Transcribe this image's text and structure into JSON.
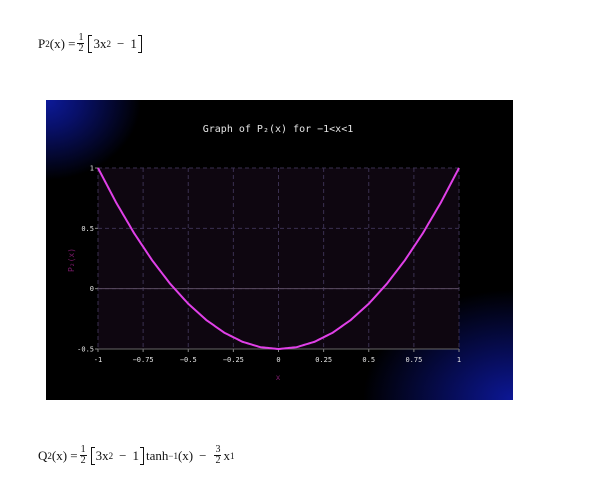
{
  "formula_p2": {
    "lhs": "P",
    "lhs_sub": "2",
    "arg": "(x) =",
    "frac_num": "1",
    "frac_den": "2",
    "term1": "3x",
    "term1_sup": "2",
    "minus": "−",
    "term2": "1"
  },
  "formula_q2": {
    "lhs": "Q",
    "lhs_sub": "2",
    "arg": "(x) =",
    "frac_num": "1",
    "frac_den": "2",
    "term1": "3x",
    "term1_sup": "2",
    "minus": "−",
    "term2": "1",
    "func": "tanh",
    "func_sup": "−1",
    "func_arg": "(x)",
    "minus2": "−",
    "frac2_num": "3",
    "frac2_den": "2",
    "tail": "x",
    "tail_sup": "1"
  },
  "colors": {
    "curve": "#e040e8",
    "text": "#e6e6e6",
    "ylabel": "#7a1a6a",
    "xlabel": "#7a1a6a",
    "grid": "#3a3050",
    "plot_bg": "#0e0610"
  },
  "chart_data": {
    "type": "line",
    "title": "Graph of P₂(x) for −1<x<1",
    "xlabel": "x",
    "ylabel": "P₂(x)",
    "xlim": [
      -1,
      1
    ],
    "ylim": [
      -0.5,
      1
    ],
    "x_ticks": [
      "-1",
      "−0.75",
      "−0.5",
      "−0.25",
      "0",
      "0.25",
      "0.5",
      "0.75",
      "1"
    ],
    "y_ticks": [
      "-0.5",
      "0",
      "0.5",
      "1"
    ],
    "grid": true,
    "series": [
      {
        "x": [
          -1,
          -0.9,
          -0.8,
          -0.7,
          -0.6,
          -0.5,
          -0.4,
          -0.3,
          -0.2,
          -0.1,
          0,
          0.1,
          0.2,
          0.3,
          0.4,
          0.5,
          0.6,
          0.7,
          0.8,
          0.9,
          1
        ],
        "y": [
          1,
          0.715,
          0.46,
          0.235,
          0.04,
          -0.125,
          -0.26,
          -0.365,
          -0.44,
          -0.485,
          -0.5,
          -0.485,
          -0.44,
          -0.365,
          -0.26,
          -0.125,
          0.04,
          0.235,
          0.46,
          0.715,
          1
        ]
      }
    ]
  }
}
